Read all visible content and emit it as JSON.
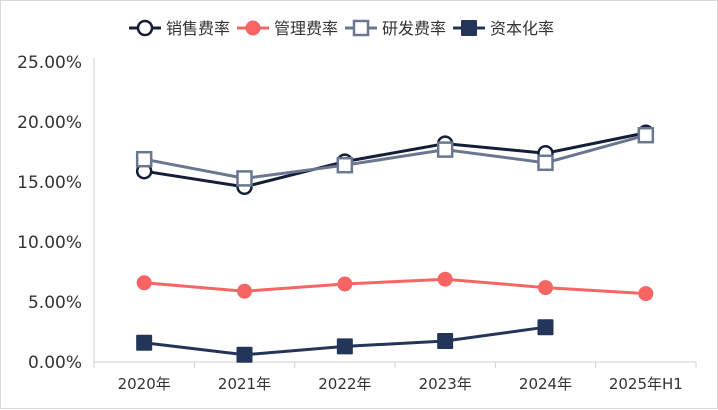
{
  "chart_data": {
    "type": "line",
    "title": "",
    "xlabel": "",
    "ylabel": "",
    "categories": [
      "2020年",
      "2021年",
      "2022年",
      "2023年",
      "2024年",
      "2025年H1"
    ],
    "ylim": [
      0,
      25
    ],
    "yticks": [
      "0.00%",
      "5.00%",
      "10.00%",
      "15.00%",
      "20.00%",
      "25.00%"
    ],
    "grid": false,
    "legend_position": "top",
    "series": [
      {
        "name": "销售费率",
        "color": "#141e38",
        "marker": "circle-open",
        "values": [
          15.9,
          14.6,
          16.7,
          18.2,
          17.4,
          19.1
        ]
      },
      {
        "name": "管理费率",
        "color": "#f76464",
        "marker": "circle-filled",
        "values": [
          6.6,
          5.9,
          6.5,
          6.9,
          6.2,
          5.7
        ]
      },
      {
        "name": "研发费率",
        "color": "#6b7690",
        "marker": "square-open",
        "values": [
          16.9,
          15.3,
          16.4,
          17.7,
          16.6,
          18.9
        ]
      },
      {
        "name": "资本化率",
        "color": "#233559",
        "marker": "square-filled",
        "values": [
          1.6,
          0.6,
          1.3,
          1.75,
          2.9,
          null
        ]
      }
    ]
  }
}
